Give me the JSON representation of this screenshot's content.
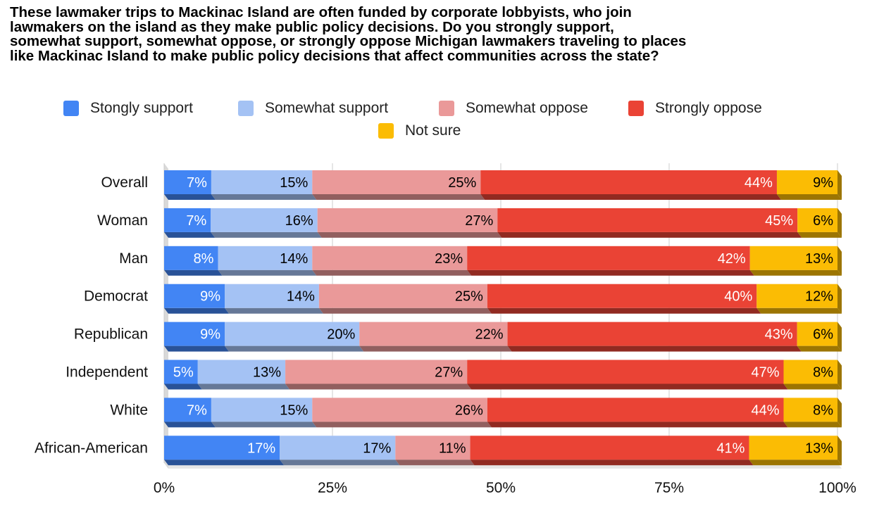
{
  "chart_data": {
    "type": "bar",
    "orientation": "horizontal",
    "stacked": true,
    "title": "These lawmaker trips to Mackinac Island are often funded by corporate lobbyists, who join\nlawmakers on the island as they make public policy decisions. Do you strongly support,\nsomewhat support, somewhat oppose, or strongly oppose Michigan lawmakers traveling to places\nlike Mackinac Island to make public policy decisions that affect communities across the state?",
    "xlabel": "",
    "ylabel": "",
    "xlim": [
      0,
      100
    ],
    "x_ticks": [
      "0%",
      "25%",
      "50%",
      "75%",
      "100%"
    ],
    "grid": true,
    "legend_position": "top",
    "categories": [
      "Overall",
      "Woman",
      "Man",
      "Democrat",
      "Republican",
      "Independent",
      "White",
      "African-American"
    ],
    "series": [
      {
        "name": "Stongly support",
        "color": "#4285f4",
        "values": [
          7,
          7,
          8,
          9,
          9,
          5,
          7,
          17
        ]
      },
      {
        "name": "Somewhat support",
        "color": "#a4c2f4",
        "values": [
          15,
          16,
          14,
          14,
          20,
          13,
          15,
          17
        ]
      },
      {
        "name": "Somewhat oppose",
        "color": "#ea9999",
        "values": [
          25,
          27,
          23,
          25,
          22,
          27,
          26,
          11
        ]
      },
      {
        "name": "Strongly oppose",
        "color": "#ea4335",
        "values": [
          44,
          45,
          42,
          40,
          43,
          47,
          44,
          41
        ]
      },
      {
        "name": "Not sure",
        "color": "#fbbc04",
        "values": [
          9,
          6,
          13,
          12,
          6,
          8,
          8,
          13
        ]
      }
    ],
    "data_labels": [
      [
        "7%",
        "15%",
        "25%",
        "44%",
        "9%"
      ],
      [
        "7%",
        "16%",
        "27%",
        "45%",
        "6%"
      ],
      [
        "8%",
        "14%",
        "23%",
        "42%",
        "13%"
      ],
      [
        "9%",
        "14%",
        "25%",
        "40%",
        "12%"
      ],
      [
        "9%",
        "20%",
        "22%",
        "43%",
        "6%"
      ],
      [
        "5%",
        "13%",
        "27%",
        "47%",
        "8%"
      ],
      [
        "7%",
        "15%",
        "26%",
        "44%",
        "8%"
      ],
      [
        "17%",
        "17%",
        "11%",
        "41%",
        "13%"
      ]
    ],
    "data_label_colors": [
      "#ffffff",
      "#000000",
      "#000000",
      "#ffffff",
      "#000000"
    ]
  }
}
